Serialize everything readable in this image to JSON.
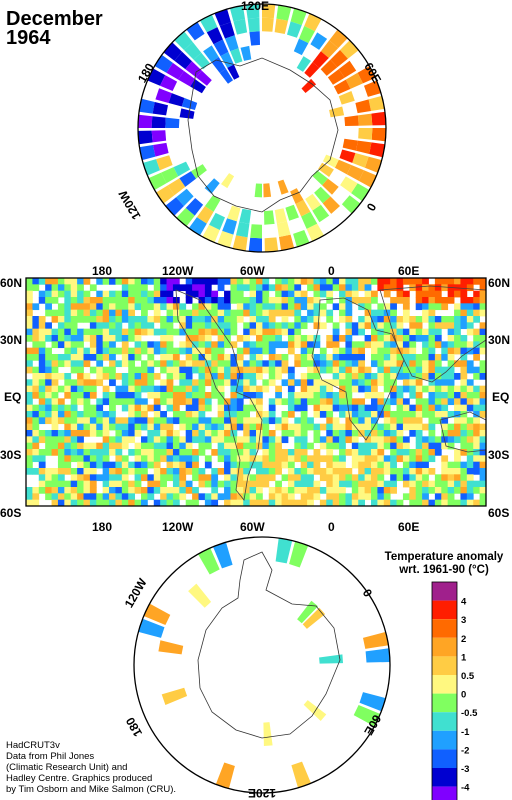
{
  "title": {
    "line1": "December",
    "line2": "1964"
  },
  "north_polar_map": {
    "labels": {
      "top": "120E",
      "upper_left": "180",
      "upper_right": "60E",
      "lower_left": "120W",
      "lower_right": "0"
    }
  },
  "main_map": {
    "top_lon_labels": [
      "180",
      "120W",
      "60W",
      "0",
      "60E"
    ],
    "bottom_lon_labels": [
      "180",
      "120W",
      "60W",
      "0",
      "60E"
    ],
    "left_lat_labels": [
      "60N",
      "30N",
      "EQ",
      "30S",
      "60S"
    ],
    "right_lat_labels": [
      "60N",
      "30N",
      "EQ",
      "30S",
      "60S"
    ]
  },
  "south_polar_map": {
    "labels": {
      "upper_left": "120W",
      "upper_right": "0",
      "lower_left": "180",
      "lower_right": "60E",
      "bottom": "120E"
    }
  },
  "legend": {
    "title_line1": "Temperature anomaly",
    "title_line2": "wrt. 1961-90  (°C)",
    "entries": [
      {
        "label": "4",
        "color": "#a0208c"
      },
      {
        "label": "3",
        "color": "#ff1e00"
      },
      {
        "label": "2",
        "color": "#ff6a00"
      },
      {
        "label": "1",
        "color": "#ffa524"
      },
      {
        "label": "0.5",
        "color": "#ffcc44"
      },
      {
        "label": "0",
        "color": "#fff880"
      },
      {
        "label": "-0.5",
        "color": "#80ff60"
      },
      {
        "label": "-1",
        "color": "#40e0d0"
      },
      {
        "label": "-2",
        "color": "#20a0ff"
      },
      {
        "label": "-3",
        "color": "#1060ff"
      },
      {
        "label": "-4",
        "color": "#0000d0"
      },
      {
        "label": "",
        "color": "#8000ff"
      }
    ]
  },
  "credits": {
    "line1": "HadCRUT3v",
    "line2": "Data from Phil Jones",
    "line3": "(Climatic Research Unit) and",
    "line4": "Hadley Centre.  Graphics produced",
    "line5": "by Tim Osborn and Mike Salmon (CRU)."
  }
}
